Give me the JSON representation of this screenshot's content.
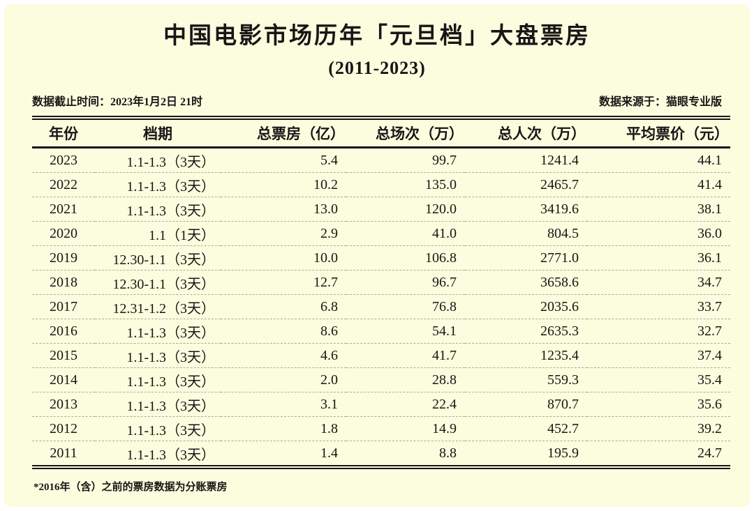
{
  "page": {
    "title": "中国电影市场历年「元旦档」大盘票房",
    "subtitle": "(2011-2023)",
    "meta_left": "数据截止时间：2023年1月2日 21时",
    "meta_right": "数据来源于：猫眼专业版",
    "footnote": "*2016年（含）之前的票房数据为分账票房"
  },
  "colors": {
    "background": "#FCFCDE",
    "page_border": "#FFFFFF",
    "text": "#161616",
    "rule": "#161616",
    "row_divider": "#ABAB9C"
  },
  "chart_data": {
    "type": "table",
    "title": "中国电影市场历年「元旦档」大盘票房 (2011-2023)",
    "columns": [
      "年份",
      "档期",
      "总票房（亿）",
      "总场次（万）",
      "总人次（万）",
      "平均票价（元）"
    ],
    "column_keys": [
      "year",
      "period",
      "gross-billion",
      "sessions-10k",
      "admissions-10k",
      "avg-price-yuan"
    ],
    "rows": [
      [
        "2023",
        "1.1-1.3（3天）",
        "5.4",
        "99.7",
        "1241.4",
        "44.1"
      ],
      [
        "2022",
        "1.1-1.3（3天）",
        "10.2",
        "135.0",
        "2465.7",
        "41.4"
      ],
      [
        "2021",
        "1.1-1.3（3天）",
        "13.0",
        "120.0",
        "3419.6",
        "38.1"
      ],
      [
        "2020",
        "1.1（1天）",
        "2.9",
        "41.0",
        "804.5",
        "36.0"
      ],
      [
        "2019",
        "12.30-1.1（3天）",
        "10.0",
        "106.8",
        "2771.0",
        "36.1"
      ],
      [
        "2018",
        "12.30-1.1（3天）",
        "12.7",
        "96.7",
        "3658.6",
        "34.7"
      ],
      [
        "2017",
        "12.31-1.2（3天）",
        "6.8",
        "76.8",
        "2035.6",
        "33.7"
      ],
      [
        "2016",
        "1.1-1.3（3天）",
        "8.6",
        "54.1",
        "2635.3",
        "32.7"
      ],
      [
        "2015",
        "1.1-1.3（3天）",
        "4.6",
        "41.7",
        "1235.4",
        "37.4"
      ],
      [
        "2014",
        "1.1-1.3（3天）",
        "2.0",
        "28.8",
        "559.3",
        "35.4"
      ],
      [
        "2013",
        "1.1-1.3（3天）",
        "3.1",
        "22.4",
        "870.7",
        "35.6"
      ],
      [
        "2012",
        "1.1-1.3（3天）",
        "1.8",
        "14.9",
        "452.7",
        "39.2"
      ],
      [
        "2011",
        "1.1-1.3（3天）",
        "1.4",
        "8.8",
        "195.9",
        "24.7"
      ]
    ]
  }
}
